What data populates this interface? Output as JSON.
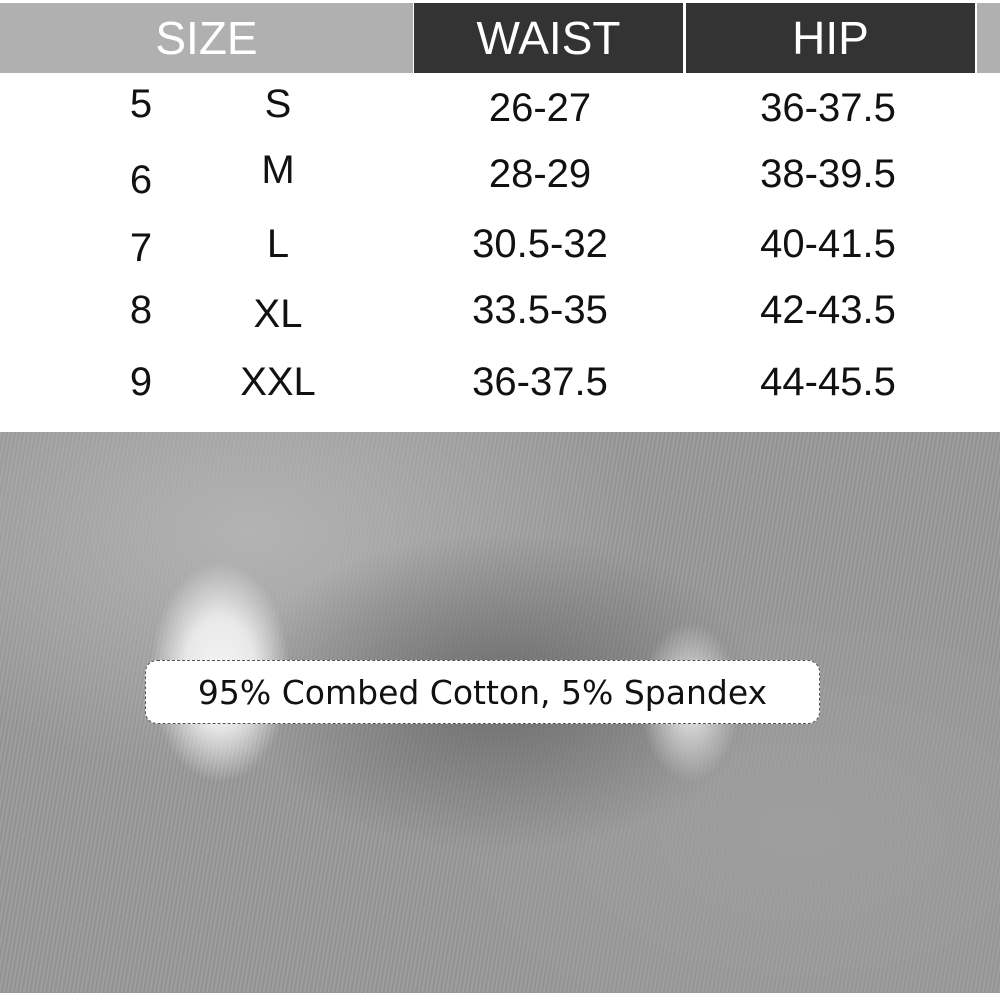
{
  "header": {
    "size": "SIZE",
    "waist": "WAIST",
    "hip": "HIP"
  },
  "rows": [
    {
      "number": "5",
      "letter": "S",
      "waist": "26-27",
      "hip": "36-37.5"
    },
    {
      "number": "6",
      "letter": "M",
      "waist": "28-29",
      "hip": "38-39.5"
    },
    {
      "number": "7",
      "letter": "L",
      "waist": "30.5-32",
      "hip": "40-41.5"
    },
    {
      "number": "8",
      "letter": "XL",
      "waist": "33.5-35",
      "hip": "42-43.5"
    },
    {
      "number": "9",
      "letter": "XXL",
      "waist": "36-37.5",
      "hip": "44-45.5"
    }
  ],
  "material_label": "95% Combed Cotton, 5% Spandex",
  "colors": {
    "size_header": "#b0b0b0",
    "measure_header": "#333333",
    "fabric": "#999999"
  }
}
